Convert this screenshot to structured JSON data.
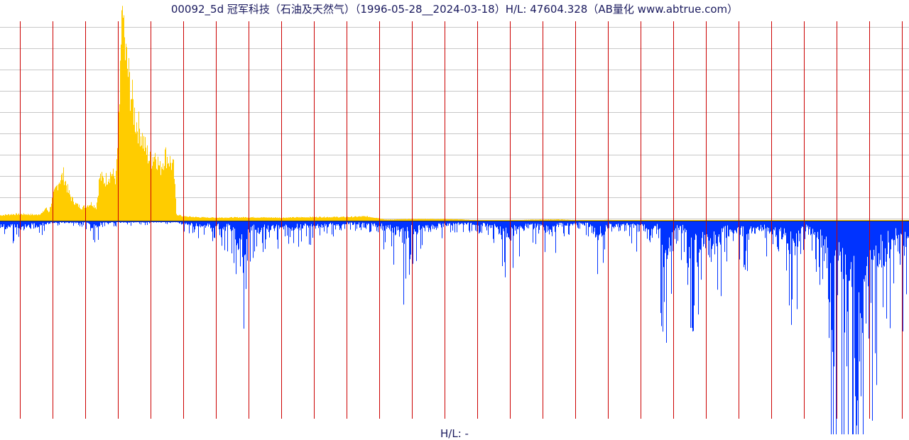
{
  "chart_data": {
    "type": "bar",
    "title": "00092_5d 冠军科技（石油及天然气）（1996-05-28__2024-03-18）H/L: 47604.328（AB量化  www.abtrue.com）",
    "footer": "H/L: -",
    "xlim": [
      1996.4,
      2024.21
    ],
    "grid": true,
    "colors": {
      "positive": "#ffcc00",
      "negative": "#0033ff",
      "year_line": "#cc0000",
      "grid": "#c8c8c8",
      "baseline": "#333333"
    },
    "year_markers": [
      1997,
      1998,
      1999,
      2000,
      2001,
      2002,
      2003,
      2004,
      2005,
      2006,
      2007,
      2008,
      2009,
      2010,
      2011,
      2012,
      2013,
      2014,
      2015,
      2016,
      2017,
      2018,
      2019,
      2020,
      2021,
      2022,
      2023,
      2024
    ],
    "series": [
      {
        "values_are": "upper profile (relative, 1.0 = series max)",
        "points": [
          [
            1996.4,
            0.025
          ],
          [
            1996.8,
            0.03
          ],
          [
            1997.2,
            0.03
          ],
          [
            1997.5,
            0.027
          ],
          [
            1997.7,
            0.035
          ],
          [
            1997.8,
            0.06
          ],
          [
            1997.9,
            0.04
          ],
          [
            1998.05,
            0.13
          ],
          [
            1998.2,
            0.2
          ],
          [
            1998.35,
            0.23
          ],
          [
            1998.5,
            0.14
          ],
          [
            1998.7,
            0.08
          ],
          [
            1998.9,
            0.06
          ],
          [
            1999.2,
            0.08
          ],
          [
            1999.35,
            0.06
          ],
          [
            1999.45,
            0.22
          ],
          [
            1999.6,
            0.2
          ],
          [
            1999.8,
            0.24
          ],
          [
            1999.95,
            0.21
          ],
          [
            2000.05,
            0.55
          ],
          [
            2000.15,
            0.96
          ],
          [
            2000.25,
            0.82
          ],
          [
            2000.4,
            0.65
          ],
          [
            2000.55,
            0.5
          ],
          [
            2000.7,
            0.45
          ],
          [
            2000.85,
            0.36
          ],
          [
            2001.0,
            0.3
          ],
          [
            2001.15,
            0.34
          ],
          [
            2001.3,
            0.26
          ],
          [
            2001.45,
            0.33
          ],
          [
            2001.6,
            0.3
          ],
          [
            2001.72,
            0.26
          ],
          [
            2001.8,
            0.03
          ],
          [
            2002.0,
            0.02
          ],
          [
            2002.5,
            0.016
          ],
          [
            2003.0,
            0.014
          ],
          [
            2004.0,
            0.016
          ],
          [
            2005.0,
            0.014
          ],
          [
            2006.0,
            0.017
          ],
          [
            2007.0,
            0.017
          ],
          [
            2007.6,
            0.02
          ],
          [
            2008.0,
            0.012
          ],
          [
            2008.2,
            0.005
          ],
          [
            2009.0,
            0.008
          ],
          [
            2010.0,
            0.008
          ],
          [
            2010.5,
            0.006
          ],
          [
            2011.0,
            0.002
          ],
          [
            2012.0,
            0.001
          ],
          [
            2012.7,
            0.005
          ],
          [
            2013.5,
            0.006
          ],
          [
            2014.0,
            0.003
          ],
          [
            2014.5,
            0.001
          ],
          [
            2015.0,
            0.004
          ],
          [
            2015.5,
            0.001
          ],
          [
            2016.0,
            0.002
          ],
          [
            2017.0,
            0.001
          ],
          [
            2018.0,
            0.001
          ],
          [
            2020.0,
            0.001
          ],
          [
            2024.21,
            0.001
          ]
        ]
      },
      {
        "values_are": "lower profile (relative, 1.0 = series max)",
        "points": [
          [
            1996.4,
            -0.05
          ],
          [
            1996.6,
            -0.04
          ],
          [
            1997.0,
            -0.05
          ],
          [
            1997.4,
            -0.04
          ],
          [
            1997.6,
            -0.03
          ],
          [
            1998.0,
            -0.01
          ],
          [
            1999.0,
            -0.01
          ],
          [
            1999.3,
            -0.05
          ],
          [
            1999.6,
            -0.01
          ],
          [
            2001.8,
            -0.005
          ],
          [
            2002.0,
            -0.02
          ],
          [
            2002.4,
            -0.03
          ],
          [
            2003.0,
            -0.04
          ],
          [
            2003.5,
            -0.06
          ],
          [
            2003.75,
            -0.23
          ],
          [
            2003.85,
            -0.35
          ],
          [
            2004.0,
            -0.08
          ],
          [
            2004.5,
            -0.06
          ],
          [
            2005.0,
            -0.05
          ],
          [
            2005.5,
            -0.05
          ],
          [
            2006.0,
            -0.04
          ],
          [
            2006.5,
            -0.03
          ],
          [
            2007.0,
            -0.02
          ],
          [
            2007.7,
            -0.02
          ],
          [
            2008.3,
            -0.06
          ],
          [
            2008.6,
            -0.1
          ],
          [
            2008.75,
            -0.15
          ],
          [
            2009.0,
            -0.08
          ],
          [
            2009.5,
            -0.06
          ],
          [
            2010.0,
            -0.03
          ],
          [
            2010.5,
            -0.02
          ],
          [
            2011.0,
            -0.02
          ],
          [
            2011.6,
            -0.05
          ],
          [
            2011.9,
            -0.14
          ],
          [
            2012.2,
            -0.07
          ],
          [
            2012.6,
            -0.04
          ],
          [
            2013.0,
            -0.05
          ],
          [
            2013.3,
            -0.08
          ],
          [
            2013.5,
            -0.03
          ],
          [
            2014.0,
            -0.02
          ],
          [
            2014.4,
            -0.03
          ],
          [
            2014.7,
            -0.12
          ],
          [
            2015.0,
            -0.04
          ],
          [
            2015.5,
            -0.03
          ],
          [
            2016.0,
            -0.06
          ],
          [
            2016.5,
            -0.04
          ],
          [
            2016.8,
            -0.35
          ],
          [
            2017.0,
            -0.05
          ],
          [
            2017.4,
            -0.08
          ],
          [
            2017.5,
            -0.22
          ],
          [
            2017.7,
            -0.28
          ],
          [
            2017.9,
            -0.15
          ],
          [
            2018.1,
            -0.25
          ],
          [
            2018.3,
            -0.18
          ],
          [
            2018.5,
            -0.12
          ],
          [
            2018.8,
            -0.06
          ],
          [
            2019.3,
            -0.1
          ],
          [
            2019.6,
            -0.05
          ],
          [
            2020.0,
            -0.07
          ],
          [
            2020.4,
            -0.1
          ],
          [
            2020.7,
            -0.25
          ],
          [
            2020.9,
            -0.06
          ],
          [
            2021.2,
            -0.08
          ],
          [
            2021.5,
            -0.12
          ],
          [
            2021.7,
            -0.3
          ],
          [
            2021.8,
            -1.0
          ],
          [
            2022.0,
            -0.7
          ],
          [
            2022.3,
            -0.5
          ],
          [
            2022.5,
            -0.9
          ],
          [
            2022.7,
            -0.95
          ],
          [
            2022.9,
            -0.5
          ],
          [
            2023.2,
            -0.3
          ],
          [
            2023.5,
            -0.22
          ],
          [
            2023.8,
            -0.15
          ],
          [
            2024.0,
            -0.3
          ],
          [
            2024.21,
            -0.08
          ]
        ]
      }
    ]
  }
}
